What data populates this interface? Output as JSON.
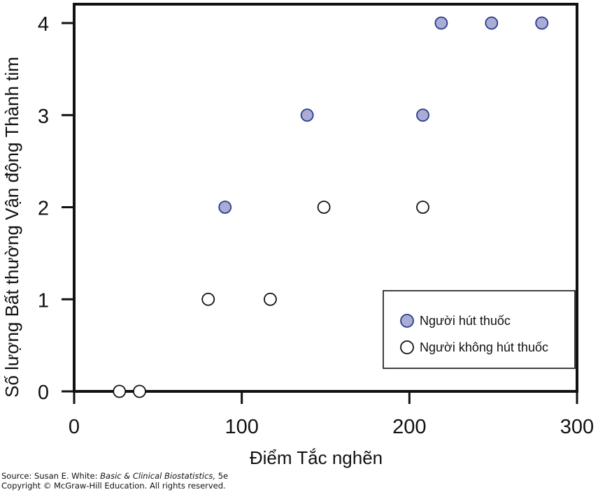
{
  "chart_data": {
    "type": "scatter",
    "xlabel": "Điểm Tắc nghẽn",
    "ylabel": "Số lượng Bất thường Vận động Thành tim",
    "xlim": [
      0,
      300
    ],
    "ylim": [
      0,
      4
    ],
    "xticks": [
      0,
      100,
      200,
      300
    ],
    "yticks": [
      0,
      1,
      2,
      3,
      4
    ],
    "grid": false,
    "legend_position": "bottom-right",
    "series": [
      {
        "name": "Người hút thuốc",
        "marker": "filled-circle",
        "color": "#a9acd4",
        "edge_color": "#2a3a8c",
        "points": [
          {
            "x": 90,
            "y": 2
          },
          {
            "x": 139,
            "y": 3
          },
          {
            "x": 208,
            "y": 3
          },
          {
            "x": 219,
            "y": 4
          },
          {
            "x": 249,
            "y": 4
          },
          {
            "x": 279,
            "y": 4
          }
        ]
      },
      {
        "name": "Người không hút thuốc",
        "marker": "open-circle",
        "color": "#ffffff",
        "edge_color": "#111111",
        "points": [
          {
            "x": 27,
            "y": 0
          },
          {
            "x": 39,
            "y": 0
          },
          {
            "x": 80,
            "y": 1
          },
          {
            "x": 117,
            "y": 1
          },
          {
            "x": 149,
            "y": 2
          },
          {
            "x": 208,
            "y": 2
          }
        ]
      }
    ]
  },
  "source": {
    "prefix": "Source: Susan E. White: ",
    "book": "Basic & Clinical Biostatistics,",
    "edition": " 5e",
    "copyright": "Copyright © McGraw-Hill Education. All rights reserved."
  }
}
